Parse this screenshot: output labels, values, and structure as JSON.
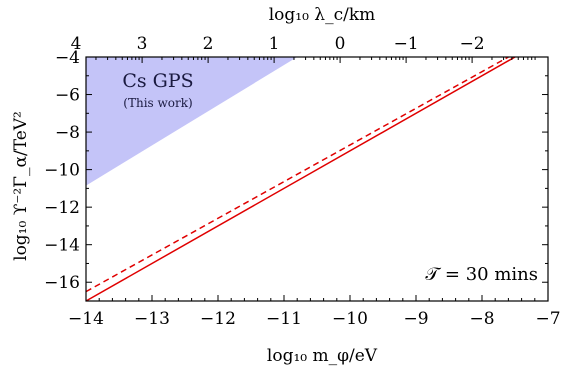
{
  "chart_data": {
    "type": "line",
    "xlabel": "log₁₀ m_φ/eV",
    "ylabel": "log₁₀ ϒ⁻²Γ_α/TeV²",
    "top_axis_label": "log₁₀ λ_c/km",
    "xlim": [
      -14,
      -7
    ],
    "ylim": [
      -17,
      -4
    ],
    "x_ticks": [
      -14,
      -13,
      -12,
      -11,
      -10,
      -9,
      -8,
      -7
    ],
    "x_tick_labels": [
      "−14",
      "−13",
      "−12",
      "−11",
      "−10",
      "−9",
      "−8",
      "−7"
    ],
    "y_ticks": [
      -16,
      -14,
      -12,
      -10,
      -8,
      -6,
      -4
    ],
    "y_tick_labels": [
      "−16",
      "−14",
      "−12",
      "−10",
      "−8",
      "−6",
      "−4"
    ],
    "top_ticks_mphi": [
      -14.15,
      -13.15,
      -12.15,
      -11.15,
      -10.15,
      -9.15,
      -8.15
    ],
    "top_tick_labels": [
      "4",
      "3",
      "2",
      "1",
      "0",
      "−1",
      "−2"
    ],
    "grid": false,
    "series": [
      {
        "style": "solid",
        "color": "#e00000",
        "x": [
          -14,
          -7.5
        ],
        "y": [
          -17,
          -4
        ]
      },
      {
        "style": "dashed",
        "color": "#e00000",
        "x": [
          -14,
          -7.6
        ],
        "y": [
          -16.5,
          -4
        ]
      }
    ],
    "region": {
      "color": "#c4c4f8",
      "label": "Cs GPS",
      "sublabel": "(This work)",
      "polygon": [
        [
          -14,
          -10.85
        ],
        [
          -14,
          -4
        ],
        [
          -10.8,
          -4
        ]
      ]
    },
    "annotation": "𝒯 = 30 mins"
  }
}
